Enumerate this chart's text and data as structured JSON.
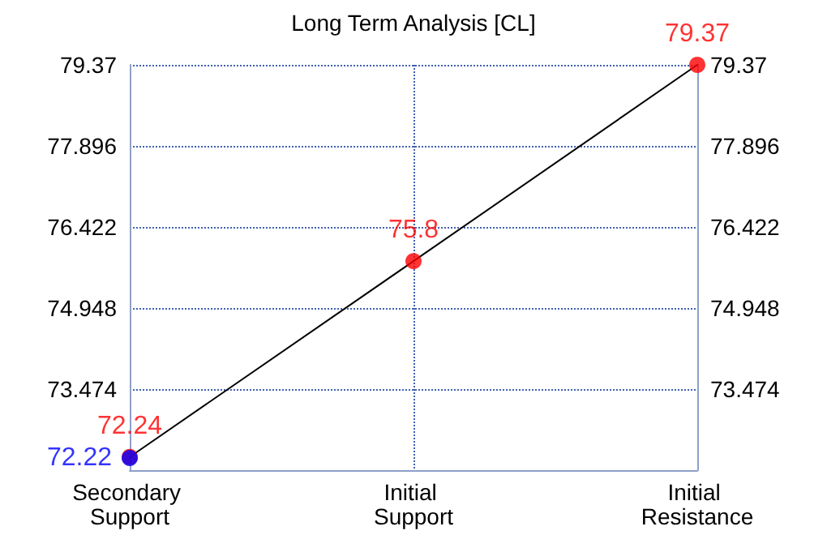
{
  "chart_data": {
    "type": "line",
    "title": "Long Term Analysis [CL]",
    "categories": [
      "Secondary Support",
      "Initial Support",
      "Initial Resistance"
    ],
    "series": [
      {
        "color": "#000000",
        "marker": "none",
        "values": [
          72.24,
          75.8,
          79.37
        ]
      },
      {
        "type": "scatter",
        "color": "#ff0000",
        "marker": "circle",
        "values": [
          72.24,
          75.8,
          79.37
        ],
        "value_labels": [
          "72.24",
          "75.8",
          "79.37"
        ]
      },
      {
        "type": "scatter",
        "color": "#0000ff",
        "marker": "circle",
        "values": [
          72.22,
          null,
          null
        ],
        "value_labels": [
          "72.22",
          null,
          null
        ]
      }
    ],
    "ylim": [
      72,
      79.37
    ],
    "yticks": [
      {
        "value": 72,
        "label": null
      },
      73.474,
      74.948,
      76.422,
      77.896,
      79.37
    ],
    "y2lim": [
      72,
      79.37
    ],
    "y2ticks": [
      {
        "value": 72,
        "label": null
      },
      73.474,
      74.948,
      76.422,
      77.896,
      79.37
    ],
    "grid": true
  }
}
